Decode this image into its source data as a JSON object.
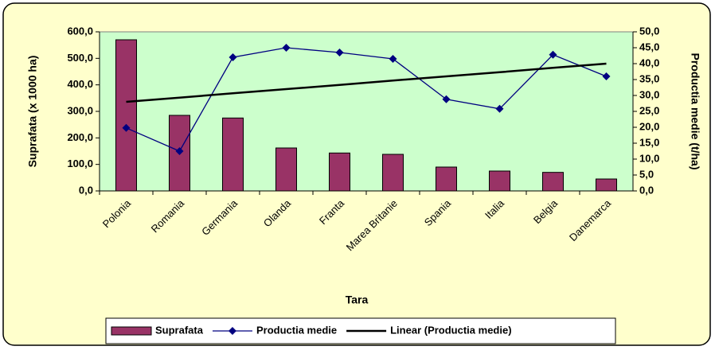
{
  "chart_data": {
    "type": "bar-line",
    "categories": [
      "Polonia",
      "Romania",
      "Germania",
      "Olanda",
      "Franta",
      "Marea Britanie",
      "Spania",
      "Italia",
      "Belgia",
      "Danemarca"
    ],
    "x_label": "Tara",
    "y_label": "Suprafata (x 1000 ha)",
    "y2_label": "Productia medie (t/ha)",
    "series": [
      {
        "name": "Suprafata",
        "type": "bar",
        "color": "#993366",
        "values": [
          570,
          285,
          275,
          162,
          143,
          138,
          90,
          75,
          70,
          45
        ]
      },
      {
        "name": "Productia medie",
        "type": "line",
        "axis": "y2",
        "color": "#000080",
        "values": [
          19.8,
          12.5,
          42,
          45,
          43.5,
          41.5,
          28.8,
          25.8,
          42.8,
          36
        ]
      },
      {
        "name": "Linear (Productia medie)",
        "type": "line",
        "axis": "y2",
        "color": "#000000",
        "values": [
          28,
          29.3,
          30.7,
          32,
          33.3,
          34.7,
          36,
          37.3,
          38.7,
          40
        ]
      }
    ],
    "ylim": [
      0,
      600
    ],
    "yticks": [
      {
        "value": 0,
        "label": "0,0"
      },
      {
        "value": 100,
        "label": "100,0"
      },
      {
        "value": 200,
        "label": "200,0"
      },
      {
        "value": 300,
        "label": "300,0"
      },
      {
        "value": 400,
        "label": "400,0"
      },
      {
        "value": 500,
        "label": "500,0"
      },
      {
        "value": 600,
        "label": "600,0"
      }
    ],
    "y2lim": [
      0,
      50
    ],
    "y2ticks": [
      {
        "value": 0,
        "label": "0,0"
      },
      {
        "value": 5,
        "label": "5,0"
      },
      {
        "value": 10,
        "label": "10,0"
      },
      {
        "value": 15,
        "label": "15,0"
      },
      {
        "value": 20,
        "label": "20,0"
      },
      {
        "value": 25,
        "label": "25,0"
      },
      {
        "value": 30,
        "label": "30,0"
      },
      {
        "value": 35,
        "label": "35,0"
      },
      {
        "value": 40,
        "label": "40,0"
      },
      {
        "value": 45,
        "label": "45,0"
      },
      {
        "value": 50,
        "label": "50,0"
      }
    ],
    "plot_background": "#CCFFCC",
    "background": "#FFFFCC"
  }
}
